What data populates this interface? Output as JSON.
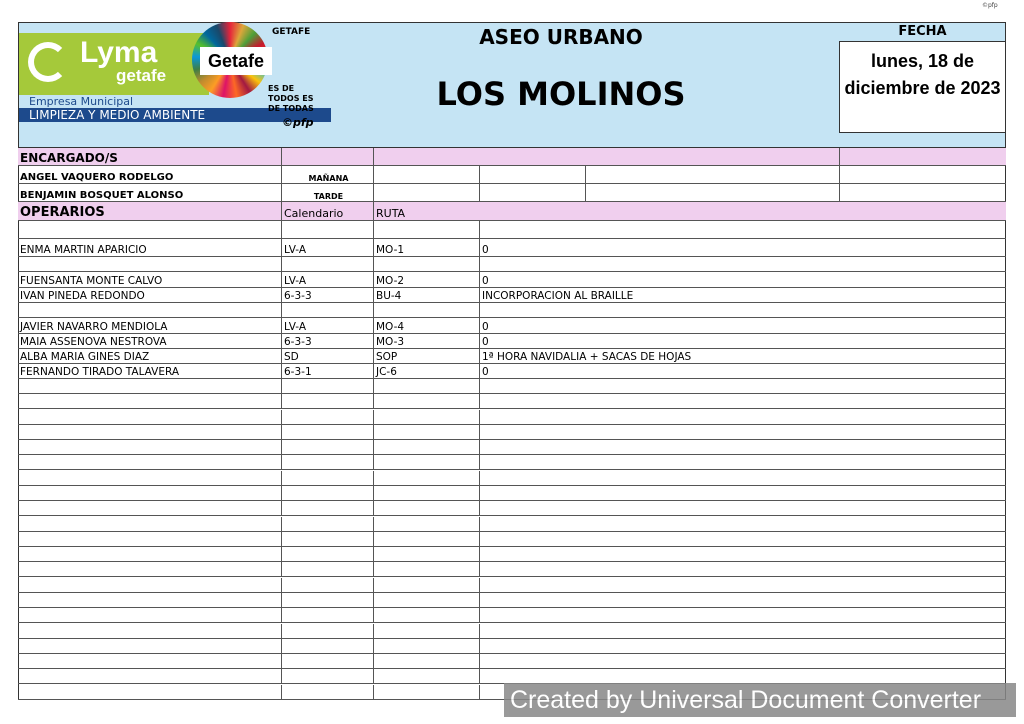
{
  "corner_mark": "©pfp",
  "logo": {
    "brand": "Lyma",
    "brand_sub": "getafe",
    "empresa": "Empresa Municipal",
    "division": "LIMPIEZA Y MEDIO AMBIENTE",
    "ayto": "GETAFE",
    "ods": "Getafe",
    "lema": "ES DE TODOS ES DE TODAS",
    "copy": "©pfp"
  },
  "header": {
    "title": "ASEO URBANO",
    "zone": "LOS MOLINOS",
    "fecha_label": "FECHA",
    "fecha": "lunes, 18 de diciembre de 2023"
  },
  "encargados": {
    "label": "ENCARGADO/S",
    "rows": [
      {
        "name": "ANGEL VAQUERO RODELGO",
        "turno": "MAÑANA"
      },
      {
        "name": "BENJAMIN BOSQUET ALONSO",
        "turno": "TARDE"
      }
    ]
  },
  "operarios": {
    "label": "OPERARIOS",
    "col_calendario": "Calendario",
    "col_ruta": "RUTA",
    "rows": [
      {
        "name": "",
        "cal": "",
        "ruta": "",
        "obs": ""
      },
      {
        "name": "ENMA MARTIN APARICIO",
        "cal": "LV-A",
        "ruta": "MO-1",
        "obs": "0"
      },
      {
        "name": "",
        "cal": "",
        "ruta": "",
        "obs": ""
      },
      {
        "name": "FUENSANTA MONTE CALVO",
        "cal": "LV-A",
        "ruta": "MO-2",
        "obs": "0"
      },
      {
        "name": "IVAN PINEDA REDONDO",
        "cal": "6-3-3",
        "ruta": "BU-4",
        "obs": "INCORPORACION AL BRAILLE"
      },
      {
        "name": "",
        "cal": "",
        "ruta": "",
        "obs": ""
      },
      {
        "name": "JAVIER NAVARRO MENDIOLA",
        "cal": "LV-A",
        "ruta": "MO-4",
        "obs": "0"
      },
      {
        "name": "MAIA ASSENOVA NESTROVA",
        "cal": "6-3-3",
        "ruta": "MO-3",
        "obs": "0"
      },
      {
        "name": "ALBA MARIA GINES DIAZ",
        "cal": "SD",
        "ruta": "SOP",
        "obs": "1ª HORA NAVIDALIA + SACAS DE HOJAS"
      },
      {
        "name": "FERNANDO TIRADO TALAVERA",
        "cal": "6-3-1",
        "ruta": "JC-6",
        "obs": "0"
      }
    ]
  },
  "watermark": "Created by Universal Document Converter"
}
